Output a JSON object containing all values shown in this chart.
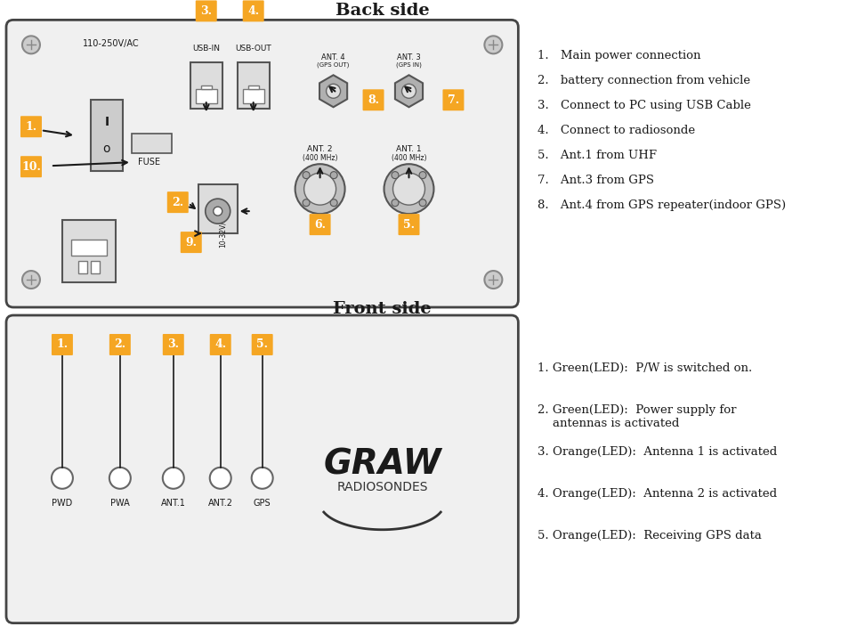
{
  "bg_color": "#ffffff",
  "orange_color": "#F5A623",
  "dark_color": "#1a1a1a",
  "gray_color": "#888888",
  "light_gray": "#cccccc",
  "panel_color": "#e8e8e8",
  "back_title": "Back side",
  "front_title": "Front side",
  "back_labels": [
    "1. Main power connection",
    "2. battery connection from vehicle",
    "3. Connect to PC using USB Cable",
    "4. Connect to radiosonde",
    "5. Ant.1 from UHF",
    "7. Ant.3 from GPS",
    "8. Ant.4 from GPS repeater(indoor GPS)"
  ],
  "front_labels": [
    "1. Green(LED):  P/W is switched on.",
    "2. Green(LED):  Power supply for\n    antennas is activated",
    "3. Orange(LED):  Antenna 1 is activated",
    "4. Orange(LED):  Antenna 2 is activated",
    "5. Orange(LED):  Receiving GPS data"
  ],
  "back_numbered": [
    "1",
    "2",
    "3",
    "4",
    "5",
    "6",
    "7",
    "8",
    "9",
    "10"
  ],
  "front_numbered": [
    "1.",
    "2.",
    "3.",
    "4.",
    "5."
  ],
  "front_led_labels": [
    "PWD",
    "PWA",
    "ANT.1",
    "ANT.2",
    "GPS"
  ]
}
